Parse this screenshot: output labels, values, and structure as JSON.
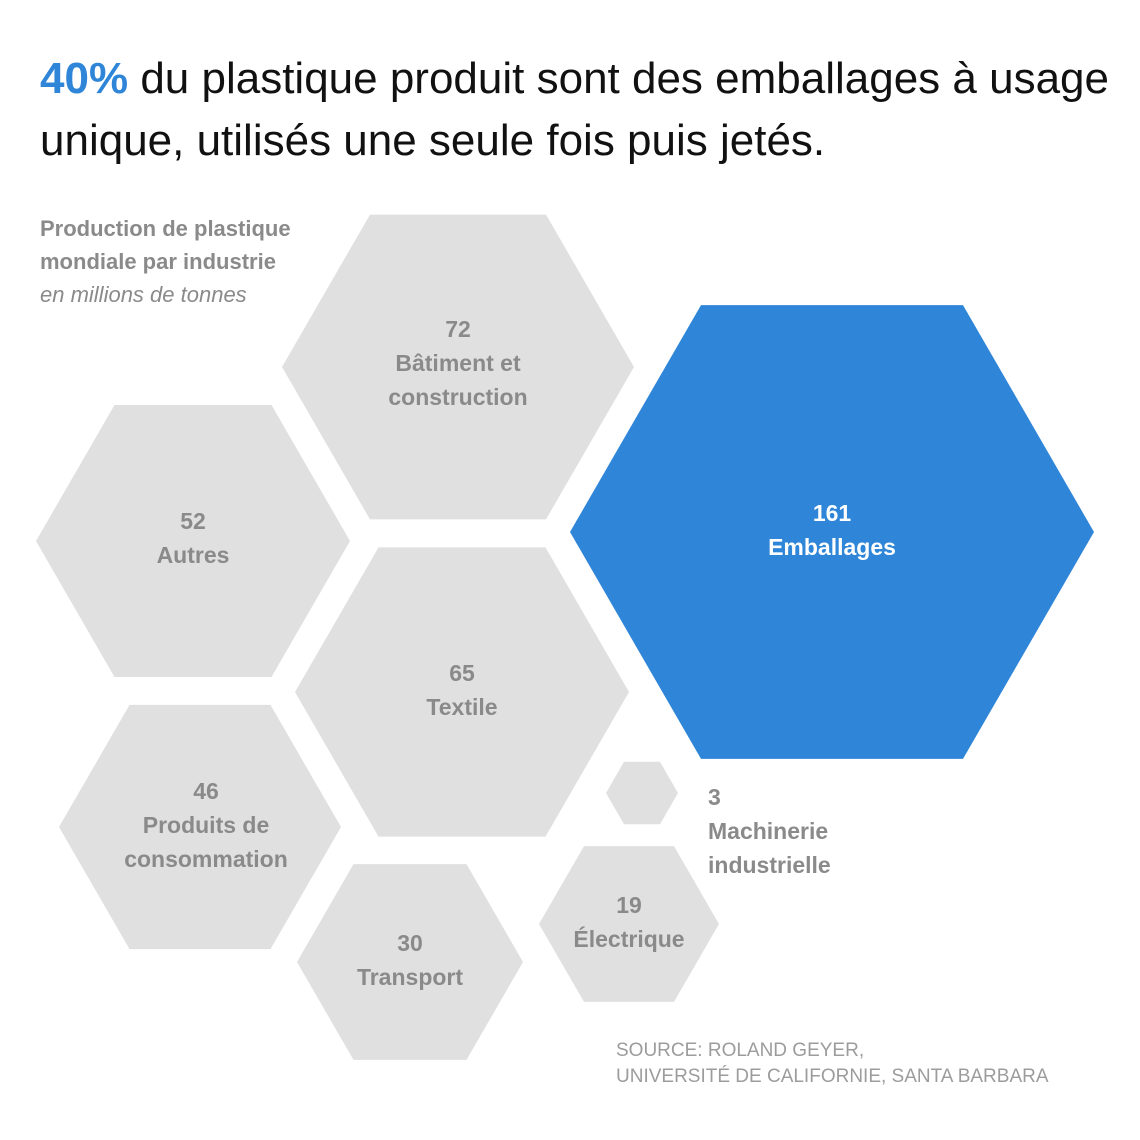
{
  "headline": {
    "accent": "40%",
    "rest": "du plastique produit sont des emballages à usage unique, utilisés une seule fois puis jetés."
  },
  "subtitle": {
    "line1": "Production de plastique",
    "line2": "mondiale par industrie",
    "unit": "en millions de tonnes"
  },
  "source": {
    "line1": "SOURCE: ROLAND GEYER,",
    "line2": "UNIVERSITÉ DE CALIFORNIE, SANTA BARBARA"
  },
  "colors": {
    "accent": "#2f86d8",
    "hex_fill": "#e0e0e0",
    "label": "#8a8a8a",
    "label_highlight": "#ffffff"
  },
  "chart_data": {
    "type": "hexagon-bubble",
    "unit": "millions de tonnes",
    "items": [
      {
        "value": 72,
        "label": [
          "Bâtiment et",
          "construction"
        ],
        "highlight": false
      },
      {
        "value": 161,
        "label": [
          "Emballages"
        ],
        "highlight": true
      },
      {
        "value": 52,
        "label": [
          "Autres"
        ],
        "highlight": false
      },
      {
        "value": 65,
        "label": [
          "Textile"
        ],
        "highlight": false
      },
      {
        "value": 46,
        "label": [
          "Produits de",
          "consommation"
        ],
        "highlight": false
      },
      {
        "value": 3,
        "label": [
          "Machinerie",
          "industrielle"
        ],
        "highlight": false
      },
      {
        "value": 19,
        "label": [
          "Électrique"
        ],
        "highlight": false
      },
      {
        "value": 30,
        "label": [
          "Transport"
        ],
        "highlight": false
      }
    ]
  }
}
